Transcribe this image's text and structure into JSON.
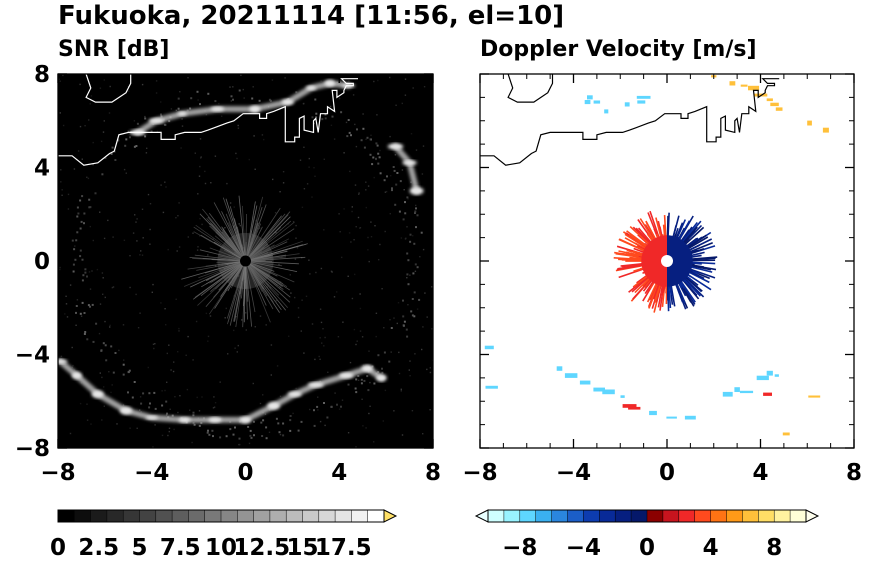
{
  "figure": {
    "title": "Fukuoka, 20211114 [11:56, el=10]"
  },
  "chart_data": [
    {
      "type": "heatmap",
      "panel": "left",
      "title": "SNR [dB]",
      "xlabel": "",
      "ylabel": "",
      "xlim": [
        -8,
        8
      ],
      "ylim": [
        -8,
        8
      ],
      "xticks": [
        -8,
        -4,
        0,
        4,
        8
      ],
      "yticks": [
        -8,
        -4,
        0,
        4,
        8
      ],
      "xtick_labels": [
        "−8",
        "−4",
        "0",
        "4",
        "8"
      ],
      "ytick_labels": [
        "−8",
        "−4",
        "0",
        "4",
        "8"
      ],
      "background": "#000000",
      "echo_color": "#e8e8e8",
      "radar_site": [
        0,
        0
      ],
      "echo_features": [
        {
          "name": "northern arc",
          "points": [
            [
              -4.6,
              5.5
            ],
            [
              -3.8,
              6.0
            ],
            [
              -2.7,
              6.3
            ],
            [
              -1.2,
              6.5
            ],
            [
              0.4,
              6.5
            ],
            [
              1.8,
              6.8
            ],
            [
              2.8,
              7.4
            ],
            [
              3.6,
              7.6
            ],
            [
              4.4,
              7.5
            ]
          ]
        },
        {
          "name": "southern arc",
          "points": [
            [
              -7.9,
              -4.3
            ],
            [
              -7.2,
              -4.9
            ],
            [
              -6.3,
              -5.7
            ],
            [
              -5.1,
              -6.4
            ],
            [
              -4.0,
              -6.7
            ],
            [
              -2.6,
              -6.8
            ],
            [
              -1.3,
              -6.8
            ],
            [
              0,
              -6.8
            ],
            [
              1.2,
              -6.2
            ],
            [
              2.1,
              -5.7
            ],
            [
              3.0,
              -5.3
            ],
            [
              4.3,
              -4.9
            ],
            [
              5.2,
              -4.6
            ],
            [
              5.8,
              -5.0
            ]
          ]
        },
        {
          "name": "eastern arc",
          "points": [
            [
              6.4,
              4.9
            ],
            [
              7.0,
              4.2
            ],
            [
              7.3,
              3.0
            ]
          ]
        }
      ],
      "colorbar": {
        "ticks": [
          0,
          2.5,
          5,
          7.5,
          10,
          12.5,
          15,
          17.5
        ],
        "tick_labels": [
          "0",
          "2.5",
          "5",
          "7.5",
          "10",
          "12.5",
          "15",
          "17.5"
        ],
        "range": [
          0,
          20
        ],
        "levels": 20,
        "color_start": "#000000",
        "color_end": "#ffffff",
        "extend_color": "#ffe066",
        "extend": "max"
      }
    },
    {
      "type": "heatmap",
      "panel": "right",
      "title": "Doppler Velocity [m/s]",
      "xlabel": "",
      "ylabel": "",
      "xlim": [
        -8,
        8
      ],
      "ylim": [
        -8,
        8
      ],
      "xticks": [
        -8,
        -4,
        0,
        4,
        8
      ],
      "yticks": [
        -8,
        -4,
        0,
        4,
        8
      ],
      "xtick_labels": [
        "−8",
        "−4",
        "0",
        "4",
        "8"
      ],
      "ytick_labels": [
        "−8",
        "−4",
        "0",
        "4",
        "8"
      ],
      "background": "#ffffff",
      "radar_site": [
        0,
        0
      ],
      "echo_features": [
        {
          "name": "north blue",
          "points": [
            [
              -3.3,
              7.0
            ],
            [
              -3.0,
              6.8
            ],
            [
              -2.6,
              6.4
            ],
            [
              -1.7,
              6.7
            ],
            [
              -1.1,
              6.8
            ],
            [
              -1.0,
              7.0
            ],
            [
              -3.4,
              6.8
            ]
          ],
          "velocity": -8
        },
        {
          "name": "north red",
          "points": [
            [
              2.0,
              7.9
            ],
            [
              2.8,
              7.6
            ],
            [
              3.3,
              7.5
            ],
            [
              3.7,
              7.4
            ],
            [
              4.0,
              7.1
            ],
            [
              4.4,
              6.9
            ],
            [
              4.6,
              6.7
            ],
            [
              4.8,
              6.5
            ],
            [
              6.1,
              5.9
            ]
          ],
          "velocity": 6
        },
        {
          "name": "south blue",
          "points": [
            [
              -4.6,
              -4.6
            ],
            [
              -4.1,
              -4.9
            ],
            [
              -3.5,
              -5.2
            ],
            [
              -2.9,
              -5.5
            ],
            [
              -2.5,
              -5.6
            ],
            [
              -1.9,
              -5.8
            ],
            [
              -0.6,
              -6.5
            ],
            [
              0.2,
              -6.7
            ],
            [
              1.0,
              -6.7
            ],
            [
              2.6,
              -5.7
            ],
            [
              3.0,
              -5.5
            ],
            [
              3.4,
              -5.6
            ],
            [
              4.1,
              -5.0
            ],
            [
              4.4,
              -4.8
            ],
            [
              4.7,
              -4.9
            ]
          ],
          "velocity": -8
        },
        {
          "name": "south red",
          "points": [
            [
              -1.6,
              -6.2
            ],
            [
              -1.4,
              -6.3
            ],
            [
              4.3,
              -5.7
            ]
          ],
          "velocity": 2
        },
        {
          "name": "edge orange",
          "points": [
            [
              6.3,
              -5.8
            ],
            [
              5.1,
              -7.4
            ],
            [
              6.8,
              5.6
            ]
          ],
          "velocity": 6
        },
        {
          "name": "edge cyan",
          "points": [
            [
              -7.6,
              -3.7
            ],
            [
              -7.5,
              -5.4
            ]
          ],
          "velocity": -8
        }
      ],
      "colorbar": {
        "ticks": [
          -8,
          -4,
          0,
          4,
          8
        ],
        "tick_labels": [
          "−8",
          "−4",
          "0",
          "4",
          "8"
        ],
        "range": [
          -10,
          10
        ],
        "levels": 20,
        "colors": [
          "#cfffff",
          "#99f3ff",
          "#5ed6ff",
          "#3ab0f0",
          "#2a86de",
          "#1b5ec8",
          "#0d3cb0",
          "#082a98",
          "#061f80",
          "#05186a",
          "#8b0000",
          "#c8141e",
          "#f02828",
          "#ff4a1e",
          "#ff7314",
          "#ff9a18",
          "#ffc03a",
          "#ffde66",
          "#fff2a0",
          "#ffffd8"
        ],
        "extend": "both"
      }
    }
  ]
}
